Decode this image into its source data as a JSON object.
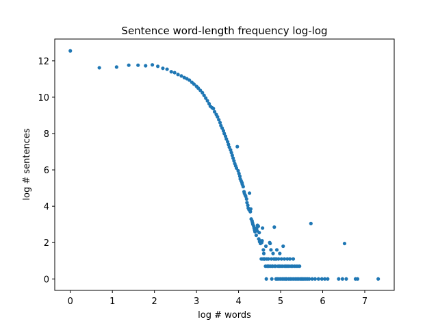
{
  "chart_data": {
    "type": "scatter",
    "title": "Sentence word-length frequency log-log",
    "xlabel": "log # words",
    "ylabel": "log # sentences",
    "xlim": [
      -0.37,
      7.7
    ],
    "ylim": [
      -0.63,
      13.2
    ],
    "xticks": [
      0,
      1,
      2,
      3,
      4,
      5,
      6,
      7
    ],
    "yticks": [
      0,
      2,
      4,
      6,
      8,
      10,
      12
    ],
    "grid": false,
    "marker_color": "#1f77b4",
    "points": [
      [
        0.0,
        12.55
      ],
      [
        0.69,
        11.62
      ],
      [
        1.1,
        11.66
      ],
      [
        1.39,
        11.76
      ],
      [
        1.61,
        11.76
      ],
      [
        1.79,
        11.73
      ],
      [
        1.95,
        11.78
      ],
      [
        2.08,
        11.7
      ],
      [
        2.2,
        11.59
      ],
      [
        2.3,
        11.54
      ],
      [
        2.4,
        11.4
      ],
      [
        2.48,
        11.35
      ],
      [
        2.56,
        11.25
      ],
      [
        2.64,
        11.17
      ],
      [
        2.71,
        11.08
      ],
      [
        2.77,
        11.02
      ],
      [
        2.83,
        10.94
      ],
      [
        2.89,
        10.82
      ],
      [
        2.94,
        10.72
      ],
      [
        3.0,
        10.6
      ],
      [
        3.04,
        10.5
      ],
      [
        3.09,
        10.38
      ],
      [
        3.14,
        10.25
      ],
      [
        3.18,
        10.1
      ],
      [
        3.22,
        9.95
      ],
      [
        3.26,
        9.8
      ],
      [
        3.3,
        9.64
      ],
      [
        3.33,
        9.5
      ],
      [
        3.37,
        9.42
      ],
      [
        3.4,
        9.38
      ],
      [
        3.43,
        9.2
      ],
      [
        3.47,
        9.05
      ],
      [
        3.5,
        8.92
      ],
      [
        3.53,
        8.76
      ],
      [
        3.56,
        8.6
      ],
      [
        3.58,
        8.44
      ],
      [
        3.61,
        8.3
      ],
      [
        3.64,
        8.15
      ],
      [
        3.66,
        8.0
      ],
      [
        3.69,
        7.85
      ],
      [
        3.71,
        7.7
      ],
      [
        3.74,
        7.55
      ],
      [
        3.76,
        7.4
      ],
      [
        3.78,
        7.25
      ],
      [
        3.81,
        7.1
      ],
      [
        3.83,
        6.95
      ],
      [
        3.85,
        6.8
      ],
      [
        3.87,
        6.65
      ],
      [
        3.89,
        6.5
      ],
      [
        3.91,
        6.35
      ],
      [
        3.93,
        6.22
      ],
      [
        3.95,
        6.1
      ],
      [
        3.97,
        7.28
      ],
      [
        3.99,
        5.95
      ],
      [
        4.01,
        5.8
      ],
      [
        4.03,
        5.65
      ],
      [
        4.04,
        5.5
      ],
      [
        4.06,
        5.4
      ],
      [
        4.08,
        5.3
      ],
      [
        4.09,
        5.2
      ],
      [
        4.11,
        5.08
      ],
      [
        4.13,
        4.8
      ],
      [
        4.14,
        4.7
      ],
      [
        4.16,
        4.6
      ],
      [
        4.17,
        4.55
      ],
      [
        4.19,
        4.4
      ],
      [
        4.2,
        4.2
      ],
      [
        4.22,
        4.05
      ],
      [
        4.23,
        3.9
      ],
      [
        4.25,
        3.8
      ],
      [
        4.26,
        4.72
      ],
      [
        4.28,
        3.7
      ],
      [
        4.29,
        3.85
      ],
      [
        4.3,
        3.3
      ],
      [
        4.32,
        3.2
      ],
      [
        4.33,
        3.1
      ],
      [
        4.34,
        3.0
      ],
      [
        4.36,
        2.9
      ],
      [
        4.37,
        2.8
      ],
      [
        4.38,
        2.7
      ],
      [
        4.39,
        2.6
      ],
      [
        4.41,
        2.7
      ],
      [
        4.42,
        2.4
      ],
      [
        4.43,
        2.8
      ],
      [
        4.44,
        2.65
      ],
      [
        4.45,
        2.95
      ],
      [
        4.47,
        2.9
      ],
      [
        4.48,
        2.2
      ],
      [
        4.49,
        2.55
      ],
      [
        4.5,
        2.05
      ],
      [
        4.51,
        2.1
      ],
      [
        4.52,
        1.95
      ],
      [
        4.54,
        1.1
      ],
      [
        4.55,
        2.0
      ],
      [
        4.56,
        2.1
      ],
      [
        4.57,
        2.8
      ],
      [
        4.58,
        1.1
      ],
      [
        4.59,
        1.6
      ],
      [
        4.6,
        1.4
      ],
      [
        4.61,
        1.1
      ],
      [
        4.62,
        1.1
      ],
      [
        4.64,
        0.7
      ],
      [
        4.65,
        1.8
      ],
      [
        4.66,
        0.0
      ],
      [
        4.67,
        1.1
      ],
      [
        4.68,
        0.7
      ],
      [
        4.7,
        0.7
      ],
      [
        4.71,
        1.1
      ],
      [
        4.72,
        0.7
      ],
      [
        4.74,
        2.0
      ],
      [
        4.75,
        1.95
      ],
      [
        4.76,
        0.7
      ],
      [
        4.77,
        1.6
      ],
      [
        4.78,
        1.1
      ],
      [
        4.79,
        0.0
      ],
      [
        4.8,
        0.7
      ],
      [
        4.81,
        0.7
      ],
      [
        4.82,
        1.4
      ],
      [
        4.84,
        1.1
      ],
      [
        4.85,
        2.85
      ],
      [
        4.86,
        0.7
      ],
      [
        4.87,
        1.1
      ],
      [
        4.88,
        0.7
      ],
      [
        4.89,
        0.0
      ],
      [
        4.9,
        1.1
      ],
      [
        4.91,
        1.6
      ],
      [
        4.92,
        0.0
      ],
      [
        4.94,
        0.7
      ],
      [
        4.95,
        1.1
      ],
      [
        4.96,
        0.0
      ],
      [
        4.97,
        0.7
      ],
      [
        4.98,
        1.4
      ],
      [
        5.0,
        0.0
      ],
      [
        5.01,
        0.7
      ],
      [
        5.02,
        1.1
      ],
      [
        5.04,
        0.0
      ],
      [
        5.05,
        0.7
      ],
      [
        5.06,
        1.8
      ],
      [
        5.08,
        0.0
      ],
      [
        5.09,
        1.1
      ],
      [
        5.1,
        0.7
      ],
      [
        5.12,
        0.0
      ],
      [
        5.13,
        0.7
      ],
      [
        5.14,
        0.0
      ],
      [
        5.16,
        1.1
      ],
      [
        5.17,
        0.7
      ],
      [
        5.19,
        0.0
      ],
      [
        5.2,
        0.7
      ],
      [
        5.22,
        1.1
      ],
      [
        5.23,
        0.0
      ],
      [
        5.25,
        0.7
      ],
      [
        5.27,
        0.0
      ],
      [
        5.28,
        0.7
      ],
      [
        5.3,
        1.1
      ],
      [
        5.31,
        0.0
      ],
      [
        5.33,
        0.7
      ],
      [
        5.35,
        0.0
      ],
      [
        5.37,
        0.7
      ],
      [
        5.39,
        0.0
      ],
      [
        5.41,
        0.7
      ],
      [
        5.43,
        0.0
      ],
      [
        5.45,
        0.7
      ],
      [
        5.47,
        0.0
      ],
      [
        5.5,
        0.0
      ],
      [
        5.53,
        0.0
      ],
      [
        5.56,
        0.0
      ],
      [
        5.6,
        0.0
      ],
      [
        5.64,
        0.0
      ],
      [
        5.68,
        0.0
      ],
      [
        5.72,
        3.05
      ],
      [
        5.75,
        0.0
      ],
      [
        5.82,
        0.0
      ],
      [
        5.9,
        0.0
      ],
      [
        5.98,
        0.0
      ],
      [
        6.05,
        0.0
      ],
      [
        6.12,
        0.0
      ],
      [
        6.38,
        0.0
      ],
      [
        6.47,
        0.0
      ],
      [
        6.52,
        1.95
      ],
      [
        6.56,
        0.0
      ],
      [
        6.78,
        0.0
      ],
      [
        6.83,
        0.0
      ],
      [
        7.32,
        0.0
      ]
    ]
  }
}
